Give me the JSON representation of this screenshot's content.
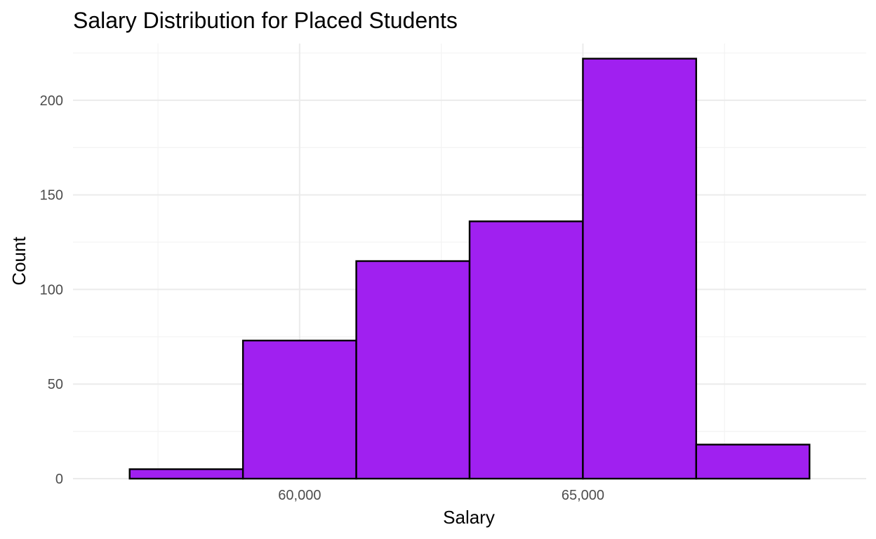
{
  "chart_data": {
    "type": "bar",
    "subtype": "histogram",
    "title": "Salary Distribution for Placed Students",
    "xlabel": "Salary",
    "ylabel": "Count",
    "bin_edges": [
      57000,
      59000,
      61000,
      63000,
      65000,
      67000,
      69000
    ],
    "counts": [
      5,
      73,
      115,
      136,
      222,
      18
    ],
    "xlim": [
      56000,
      70000
    ],
    "ylim": [
      0,
      230
    ],
    "x_ticks": [
      60000,
      65000
    ],
    "x_tick_labels": [
      "60,000",
      "65,000"
    ],
    "y_ticks": [
      0,
      50,
      100,
      150,
      200
    ],
    "y_tick_labels": [
      "0",
      "50",
      "100",
      "150",
      "200"
    ],
    "bar_fill": "#a020f0",
    "bar_outline": "#000000",
    "grid": true,
    "legend": "none"
  }
}
